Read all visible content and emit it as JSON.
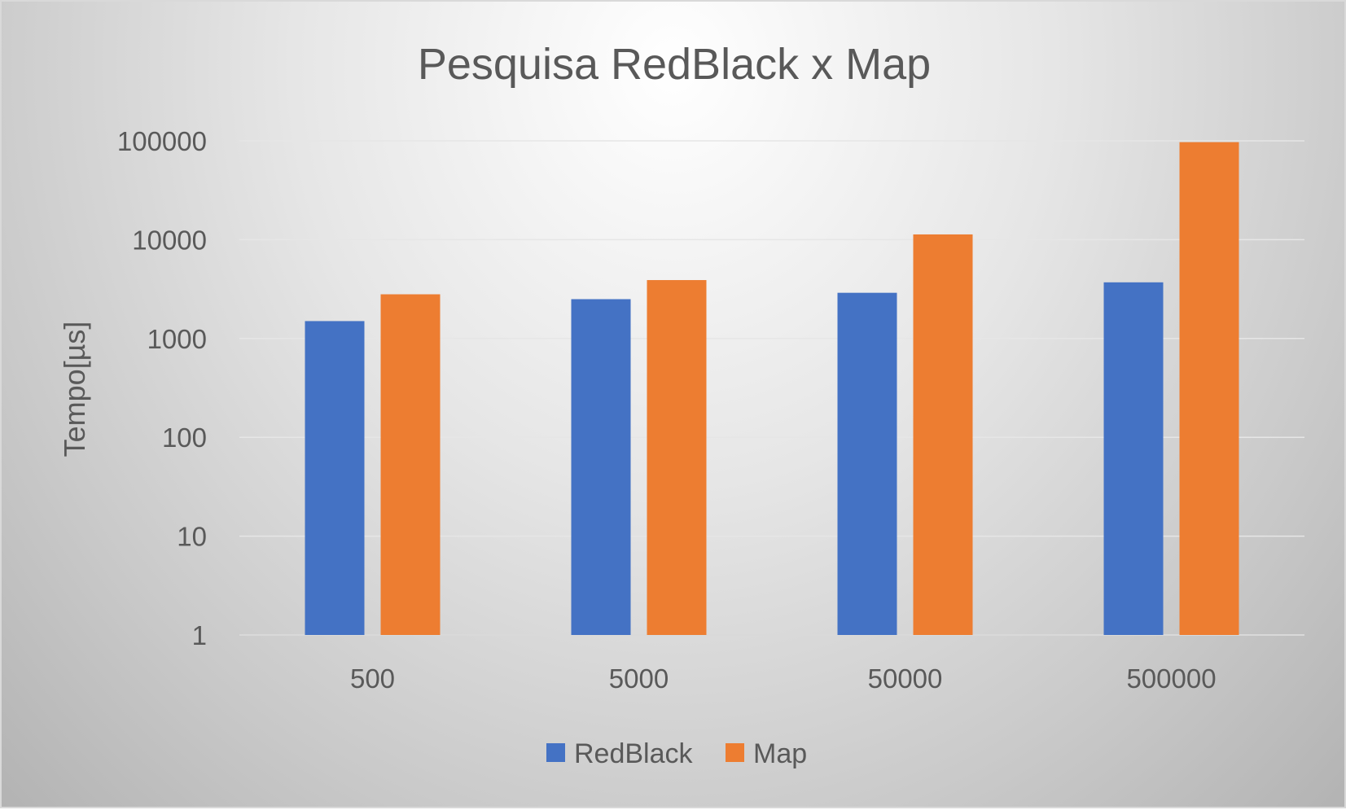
{
  "chart_data": {
    "type": "bar",
    "title": "Pesquisa RedBlack x Map",
    "xlabel": "",
    "ylabel": "Tempo[µs]",
    "yscale": "log",
    "ylim": [
      1,
      100000
    ],
    "yticks": [
      "1",
      "10",
      "100",
      "1000",
      "10000",
      "100000"
    ],
    "categories": [
      "500",
      "5000",
      "50000",
      "500000"
    ],
    "series": [
      {
        "name": "RedBlack",
        "color": "#4472C4",
        "values": [
          1500,
          2500,
          2900,
          3700
        ]
      },
      {
        "name": "Map",
        "color": "#ED7D31",
        "values": [
          2800,
          3900,
          11300,
          97000
        ]
      }
    ],
    "grid": true,
    "legend": "bottom"
  }
}
